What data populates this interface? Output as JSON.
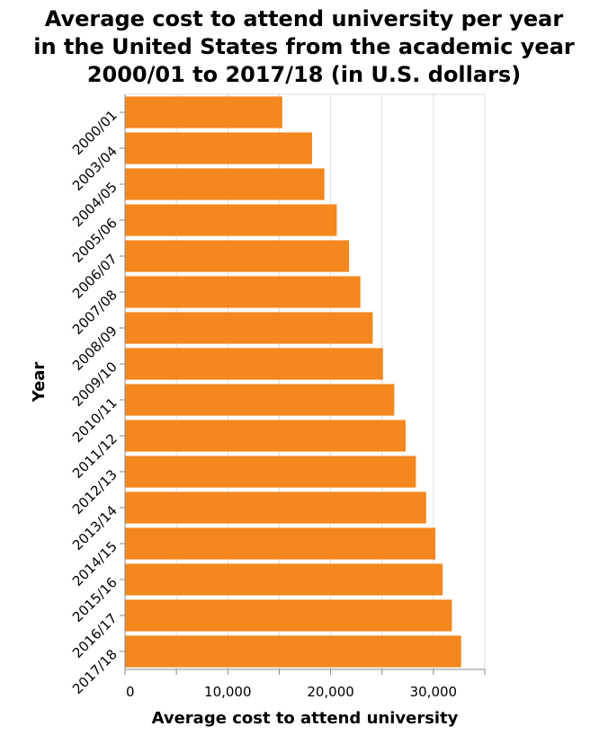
{
  "chart_data": {
    "type": "bar",
    "orientation": "horizontal",
    "title_lines": [
      "Average cost to attend university per year",
      "in the United States from the academic year",
      "2000/01 to 2017/18 (in U.S. dollars)"
    ],
    "xlabel": "Average cost to attend university",
    "ylabel": "Year",
    "categories": [
      "2000/01",
      "2003/04",
      "2004/05",
      "2005/06",
      "2006/07",
      "2007/08",
      "2008/09",
      "2009/10",
      "2010/11",
      "2011/12",
      "2012/13",
      "2013/14",
      "2014/15",
      "2015/16",
      "2016/17",
      "2017/18"
    ],
    "values": [
      15300,
      18200,
      19400,
      20600,
      21800,
      22900,
      24100,
      25100,
      26200,
      27300,
      28300,
      29300,
      30200,
      30900,
      31800,
      32700
    ],
    "xlim": [
      0,
      35000
    ],
    "x_ticks": [
      0,
      10000,
      20000,
      30000
    ],
    "x_tick_labels": [
      "0",
      "10,000",
      "20,000",
      "30,000"
    ],
    "grid": true,
    "bar_color": "#f5871f"
  }
}
